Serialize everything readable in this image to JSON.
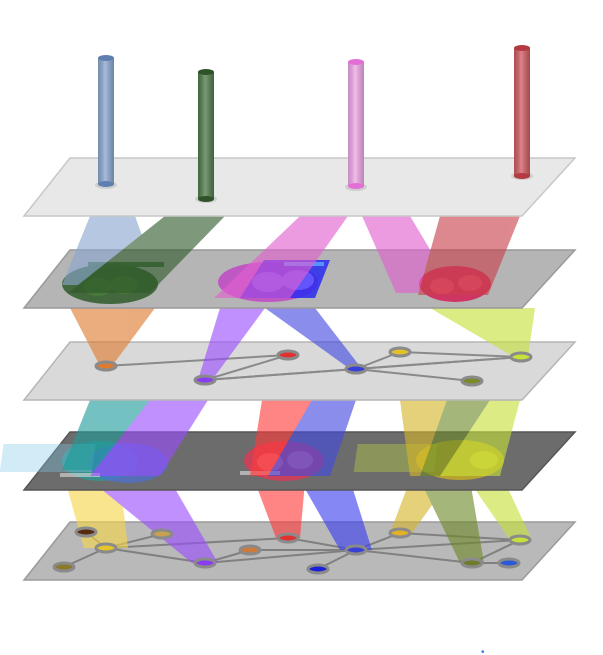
{
  "diagram": {
    "type": "layered-network-projection",
    "layer_count": 5,
    "colors": {
      "blue": "#8aa6cf",
      "dark_green": "#3f6b3b",
      "pink": "#e877d6",
      "red": "#c9404a",
      "orange": "#e07a2e",
      "purple": "#9b4dff",
      "slate_blue": "#5a67d8",
      "lime": "#c7e03a",
      "teal": "#2a9c98",
      "gold": "#e3c12a",
      "plate_light": "#e6e6e6",
      "plate_mid": "#bdbdbd",
      "plate_dark": "#6f6f6f"
    },
    "icons": [
      "cylinder-icon",
      "node-icon",
      "blob-icon"
    ]
  },
  "corner_mark": "•"
}
